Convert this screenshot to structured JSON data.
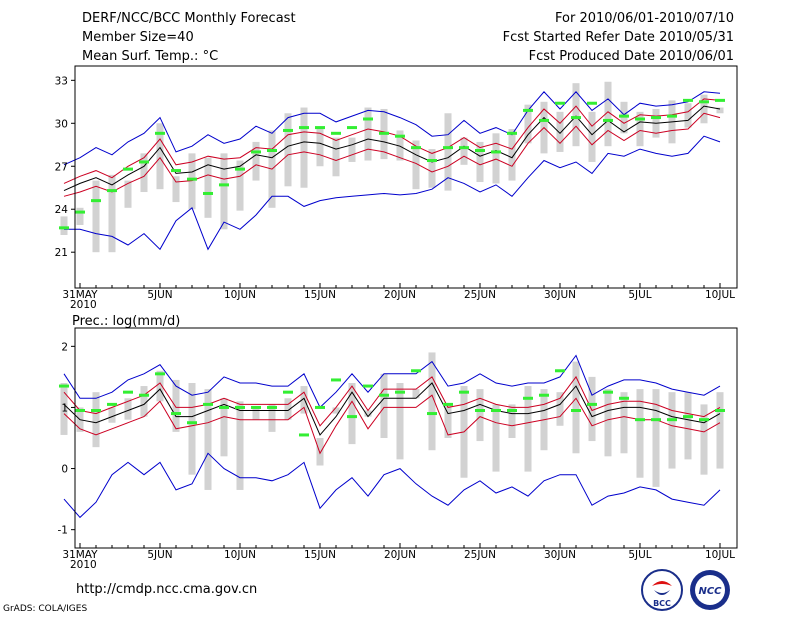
{
  "header": {
    "title": "DERF/NCC/BCC Monthly Forecast",
    "member": "Member Size=40",
    "variable": "Mean Surf. Temp.: °C",
    "period": "For 2010/06/01-2010/07/10",
    "start_date": "Fcst Started Refer Date 2010/05/31",
    "produced": "Fcst Produced Date 2010/06/01"
  },
  "footer": {
    "url": "http://cmdp.ncc.cma.gov.cn",
    "credit": "GrADS: COLA/IGES",
    "logo1_text": "BCC",
    "logo2_text": "NCC"
  },
  "colors": {
    "max_min": "#0000cc",
    "band": "#cc0022",
    "mean": "#000000",
    "box": "#d2d2d2",
    "median": "#33ee33"
  },
  "chart_data": [
    {
      "type": "line",
      "name": "temperature",
      "ylabel": "Mean Surf. Temp.: °C",
      "ylim": [
        18.5,
        34
      ],
      "yticks": [
        21,
        24,
        27,
        30,
        33
      ],
      "xticks": [
        {
          "day": 0,
          "l1": "31MAY",
          "l2": "2010"
        },
        {
          "day": 5,
          "l1": "5JUN"
        },
        {
          "day": 10,
          "l1": "10JUN"
        },
        {
          "day": 15,
          "l1": "15JUN"
        },
        {
          "day": 20,
          "l1": "20JUN"
        },
        {
          "day": 25,
          "l1": "25JUN"
        },
        {
          "day": 30,
          "l1": "30JUN"
        },
        {
          "day": 35,
          "l1": "5JUL"
        },
        {
          "day": 40,
          "l1": "10JUL"
        }
      ],
      "series": [
        {
          "name": "max",
          "values": [
            27.1,
            27.6,
            28.3,
            27.8,
            28.7,
            29.3,
            30.4,
            28.0,
            28.4,
            29.2,
            28.6,
            28.9,
            29.8,
            29.3,
            30.4,
            30.7,
            30.7,
            30.1,
            30.5,
            30.9,
            30.8,
            30.4,
            29.9,
            29.1,
            29.2,
            30.2,
            29.3,
            29.7,
            29.2,
            30.9,
            32.2,
            31.0,
            32.2,
            30.9,
            31.7,
            30.6,
            31.4,
            31.2,
            31.3,
            31.5,
            32.2,
            32.1
          ]
        },
        {
          "name": "upper",
          "values": [
            25.8,
            26.3,
            26.7,
            26.2,
            27.0,
            27.6,
            28.9,
            27.1,
            27.3,
            27.7,
            27.5,
            27.6,
            28.3,
            28.2,
            29.2,
            29.4,
            29.3,
            28.8,
            29.2,
            29.6,
            29.4,
            29.1,
            28.4,
            27.9,
            28.3,
            29.0,
            28.3,
            28.6,
            28.2,
            29.7,
            31.0,
            30.0,
            31.2,
            29.8,
            30.8,
            30.0,
            30.6,
            30.5,
            30.6,
            30.8,
            31.7,
            31.6
          ]
        },
        {
          "name": "mean",
          "values": [
            25.3,
            25.8,
            26.2,
            25.7,
            26.4,
            27.0,
            28.3,
            26.5,
            26.6,
            27.1,
            26.8,
            27.0,
            27.8,
            27.6,
            28.4,
            28.7,
            28.6,
            28.2,
            28.5,
            28.9,
            28.7,
            28.4,
            27.8,
            27.3,
            27.6,
            28.4,
            27.7,
            28.1,
            27.6,
            29.2,
            30.4,
            29.3,
            30.5,
            29.2,
            30.2,
            29.4,
            30.1,
            30.0,
            30.1,
            30.2,
            31.2,
            31.0
          ]
        },
        {
          "name": "lower",
          "values": [
            24.9,
            25.2,
            25.6,
            25.2,
            25.8,
            26.3,
            27.6,
            25.9,
            26.0,
            26.4,
            26.1,
            26.3,
            27.1,
            26.8,
            27.8,
            28.0,
            27.8,
            27.4,
            27.8,
            28.2,
            28.0,
            27.6,
            27.2,
            26.6,
            27.0,
            27.7,
            27.1,
            27.5,
            27.0,
            28.6,
            29.7,
            28.6,
            29.8,
            28.5,
            29.5,
            28.8,
            29.5,
            29.3,
            29.5,
            29.6,
            30.7,
            30.4
          ]
        },
        {
          "name": "min",
          "values": [
            22.6,
            22.6,
            22.3,
            22.1,
            21.5,
            22.3,
            21.2,
            23.2,
            24.1,
            21.2,
            23.1,
            22.6,
            23.6,
            24.9,
            24.9,
            24.2,
            24.6,
            24.8,
            24.9,
            25.0,
            25.1,
            25.0,
            25.1,
            25.4,
            26.2,
            25.8,
            25.2,
            25.7,
            24.9,
            26.2,
            27.4,
            26.9,
            27.3,
            26.5,
            27.9,
            27.7,
            28.2,
            27.9,
            27.7,
            27.9,
            29.1,
            28.7
          ]
        }
      ],
      "box_low": [
        22.2,
        22.9,
        21.0,
        21.0,
        24.1,
        25.2,
        25.4,
        24.5,
        24.0,
        23.4,
        22.6,
        23.9,
        26.0,
        24.1,
        25.6,
        25.5,
        27.0,
        26.3,
        27.3,
        27.4,
        27.5,
        27.4,
        25.4,
        25.5,
        25.3,
        27.1,
        25.9,
        25.8,
        26.0,
        28.6,
        27.9,
        28.0,
        28.4,
        27.3,
        28.4,
        29.3,
        28.4,
        29.0,
        28.6,
        29.7,
        30.0,
        30.7
      ],
      "box_high": [
        23.5,
        24.1,
        26.0,
        26.4,
        26.0,
        27.9,
        30.0,
        26.3,
        27.9,
        27.6,
        27.9,
        27.4,
        28.7,
        29.5,
        30.7,
        31.1,
        29.6,
        29.0,
        29.0,
        31.1,
        31.0,
        29.5,
        28.8,
        28.2,
        30.7,
        29.0,
        28.7,
        29.3,
        29.6,
        31.3,
        31.5,
        30.8,
        32.8,
        30.8,
        32.9,
        31.5,
        30.8,
        31.0,
        31.6,
        31.4,
        32.0,
        31.1
      ],
      "median": [
        22.7,
        23.8,
        24.6,
        25.3,
        26.8,
        27.3,
        29.3,
        26.7,
        26.1,
        25.1,
        25.7,
        26.8,
        28.0,
        28.1,
        29.5,
        29.7,
        29.7,
        29.3,
        29.7,
        30.3,
        29.3,
        29.1,
        28.3,
        27.4,
        28.3,
        28.3,
        28.1,
        28.0,
        29.3,
        30.9,
        30.2,
        31.4,
        30.4,
        31.4,
        30.2,
        30.5,
        30.3,
        30.4,
        30.5,
        31.6,
        31.5,
        31.6
      ]
    },
    {
      "type": "line",
      "name": "precipitation",
      "ylabel": "Prec.: log(mm/d)",
      "ylim": [
        -1.3,
        2.3
      ],
      "yticks": [
        -1,
        0,
        1,
        2
      ],
      "xticks": [
        {
          "day": 0,
          "l1": "31MAY",
          "l2": "2010"
        },
        {
          "day": 5,
          "l1": "5JUN"
        },
        {
          "day": 10,
          "l1": "10JUN"
        },
        {
          "day": 15,
          "l1": "15JUN"
        },
        {
          "day": 20,
          "l1": "20JUN"
        },
        {
          "day": 25,
          "l1": "25JUN"
        },
        {
          "day": 30,
          "l1": "30JUN"
        },
        {
          "day": 35,
          "l1": "5JUL"
        },
        {
          "day": 40,
          "l1": "10JUL"
        }
      ],
      "series": [
        {
          "name": "max",
          "values": [
            1.55,
            1.15,
            1.15,
            1.25,
            1.45,
            1.55,
            1.7,
            1.35,
            1.2,
            1.25,
            1.5,
            1.4,
            1.4,
            1.35,
            1.35,
            1.55,
            1.0,
            1.25,
            1.55,
            1.25,
            1.55,
            1.55,
            1.55,
            1.75,
            1.35,
            1.4,
            1.55,
            1.4,
            1.35,
            1.4,
            1.4,
            1.5,
            1.85,
            1.2,
            1.35,
            1.45,
            1.45,
            1.4,
            1.3,
            1.25,
            1.2,
            1.35
          ]
        },
        {
          "name": "upper",
          "values": [
            1.25,
            0.95,
            0.9,
            1.0,
            1.1,
            1.2,
            1.4,
            1.0,
            1.0,
            1.05,
            1.15,
            1.05,
            1.05,
            1.05,
            1.05,
            1.25,
            0.7,
            1.0,
            1.35,
            0.95,
            1.3,
            1.3,
            1.3,
            1.5,
            1.0,
            1.05,
            1.15,
            1.05,
            1.0,
            1.0,
            1.05,
            1.15,
            1.5,
            0.95,
            1.05,
            1.1,
            1.1,
            1.05,
            0.95,
            0.9,
            0.85,
            1.0
          ]
        },
        {
          "name": "mean",
          "values": [
            1.05,
            0.8,
            0.75,
            0.85,
            0.95,
            1.05,
            1.3,
            0.85,
            0.85,
            0.95,
            1.05,
            0.95,
            0.95,
            0.95,
            0.95,
            1.15,
            0.55,
            0.85,
            1.25,
            0.85,
            1.15,
            1.15,
            1.15,
            1.4,
            0.9,
            0.95,
            1.05,
            0.95,
            0.9,
            0.9,
            0.95,
            1.05,
            1.35,
            0.85,
            0.95,
            1.0,
            1.0,
            0.95,
            0.85,
            0.8,
            0.75,
            0.9
          ]
        },
        {
          "name": "lower",
          "values": [
            0.9,
            0.65,
            0.55,
            0.65,
            0.75,
            0.85,
            1.1,
            0.65,
            0.7,
            0.75,
            0.85,
            0.8,
            0.8,
            0.8,
            0.8,
            1.0,
            0.25,
            0.7,
            1.1,
            0.65,
            1.0,
            1.0,
            1.0,
            1.2,
            0.55,
            0.6,
            0.85,
            0.75,
            0.7,
            0.75,
            0.8,
            0.85,
            1.15,
            0.7,
            0.8,
            0.85,
            0.8,
            0.8,
            0.7,
            0.65,
            0.6,
            0.75
          ]
        },
        {
          "name": "min",
          "values": [
            -0.5,
            -0.8,
            -0.55,
            -0.1,
            0.1,
            -0.1,
            0.1,
            -0.35,
            -0.25,
            0.25,
            0.0,
            -0.15,
            -0.15,
            -0.2,
            -0.1,
            0.1,
            -0.65,
            -0.35,
            -0.15,
            -0.45,
            -0.1,
            0.0,
            -0.25,
            -0.45,
            -0.6,
            -0.35,
            -0.2,
            -0.4,
            -0.3,
            -0.45,
            -0.2,
            -0.1,
            -0.1,
            -0.6,
            -0.45,
            -0.4,
            -0.3,
            -0.35,
            -0.5,
            -0.55,
            -0.6,
            -0.35
          ]
        }
      ],
      "box_low": [
        0.55,
        0.6,
        0.35,
        0.75,
        0.8,
        0.85,
        1.1,
        0.6,
        -0.1,
        -0.35,
        0.2,
        -0.35,
        0.8,
        0.6,
        0.8,
        0.9,
        0.05,
        0.9,
        0.4,
        0.85,
        0.5,
        0.15,
        1.15,
        0.3,
        0.5,
        -0.15,
        0.45,
        -0.05,
        0.5,
        -0.05,
        0.3,
        0.7,
        0.25,
        0.45,
        0.2,
        0.25,
        -0.15,
        -0.3,
        0.0,
        0.15,
        -0.1,
        0.0
      ],
      "box_high": [
        1.4,
        1.0,
        1.25,
        1.0,
        1.15,
        1.35,
        1.6,
        1.45,
        1.4,
        1.3,
        1.15,
        1.1,
        1.0,
        1.05,
        1.15,
        1.35,
        0.5,
        1.0,
        1.4,
        0.95,
        1.55,
        1.4,
        1.3,
        1.9,
        1.05,
        1.35,
        1.3,
        1.05,
        1.05,
        1.35,
        1.3,
        1.25,
        1.75,
        1.5,
        1.3,
        1.25,
        1.3,
        1.3,
        1.25,
        1.25,
        1.05,
        1.25
      ],
      "median": [
        1.35,
        0.95,
        0.95,
        1.05,
        1.25,
        1.2,
        1.55,
        0.9,
        0.75,
        1.05,
        1.0,
        1.0,
        1.0,
        1.0,
        1.25,
        0.55,
        1.0,
        1.45,
        0.85,
        1.35,
        1.2,
        1.25,
        1.6,
        0.9,
        1.05,
        1.25,
        0.95,
        0.95,
        0.95,
        1.15,
        1.2,
        1.6,
        0.95,
        1.05,
        1.25,
        1.15,
        0.8,
        0.8,
        0.8,
        0.85,
        0.8,
        0.95
      ]
    }
  ]
}
